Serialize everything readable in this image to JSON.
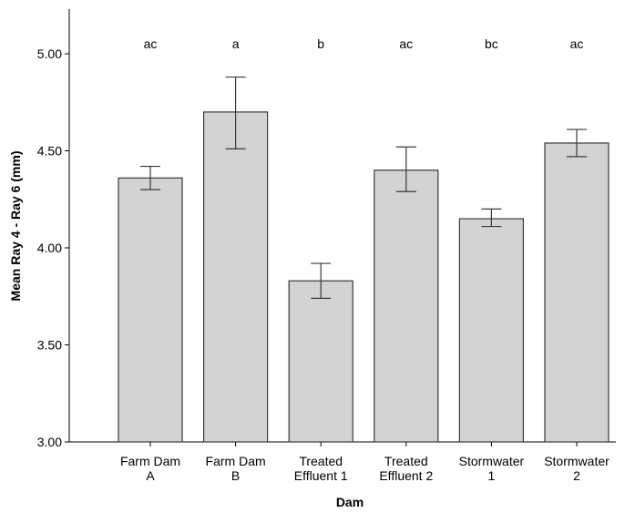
{
  "chart_data": {
    "type": "bar",
    "title": "",
    "xlabel": "Dam",
    "ylabel": "Mean Ray 4 - Ray 6 (mm)",
    "ylim": [
      3.0,
      5.2
    ],
    "yticks": [
      "3.00",
      "3.50",
      "4.00",
      "4.50",
      "5.00"
    ],
    "ytick_values": [
      3.0,
      3.5,
      4.0,
      4.5,
      5.0
    ],
    "grid": false,
    "categories": [
      [
        "Farm Dam",
        "A"
      ],
      [
        "Farm Dam",
        "B"
      ],
      [
        "Treated",
        "Effluent 1"
      ],
      [
        "Treated",
        "Effluent 2"
      ],
      [
        "Stormwater",
        "1"
      ],
      [
        "Stormwater",
        "2"
      ]
    ],
    "values": [
      4.36,
      4.7,
      3.83,
      4.4,
      4.15,
      4.54
    ],
    "error_low": [
      4.3,
      4.51,
      3.74,
      4.29,
      4.11,
      4.47
    ],
    "error_high": [
      4.42,
      4.88,
      3.92,
      4.52,
      4.2,
      4.61
    ],
    "significance_labels": [
      "ac",
      "a",
      "b",
      "ac",
      "bc",
      "ac"
    ],
    "colors": {
      "bar_fill": "#d3d3d3",
      "bar_stroke": "#3a3a3a",
      "axis": "#000000"
    }
  }
}
